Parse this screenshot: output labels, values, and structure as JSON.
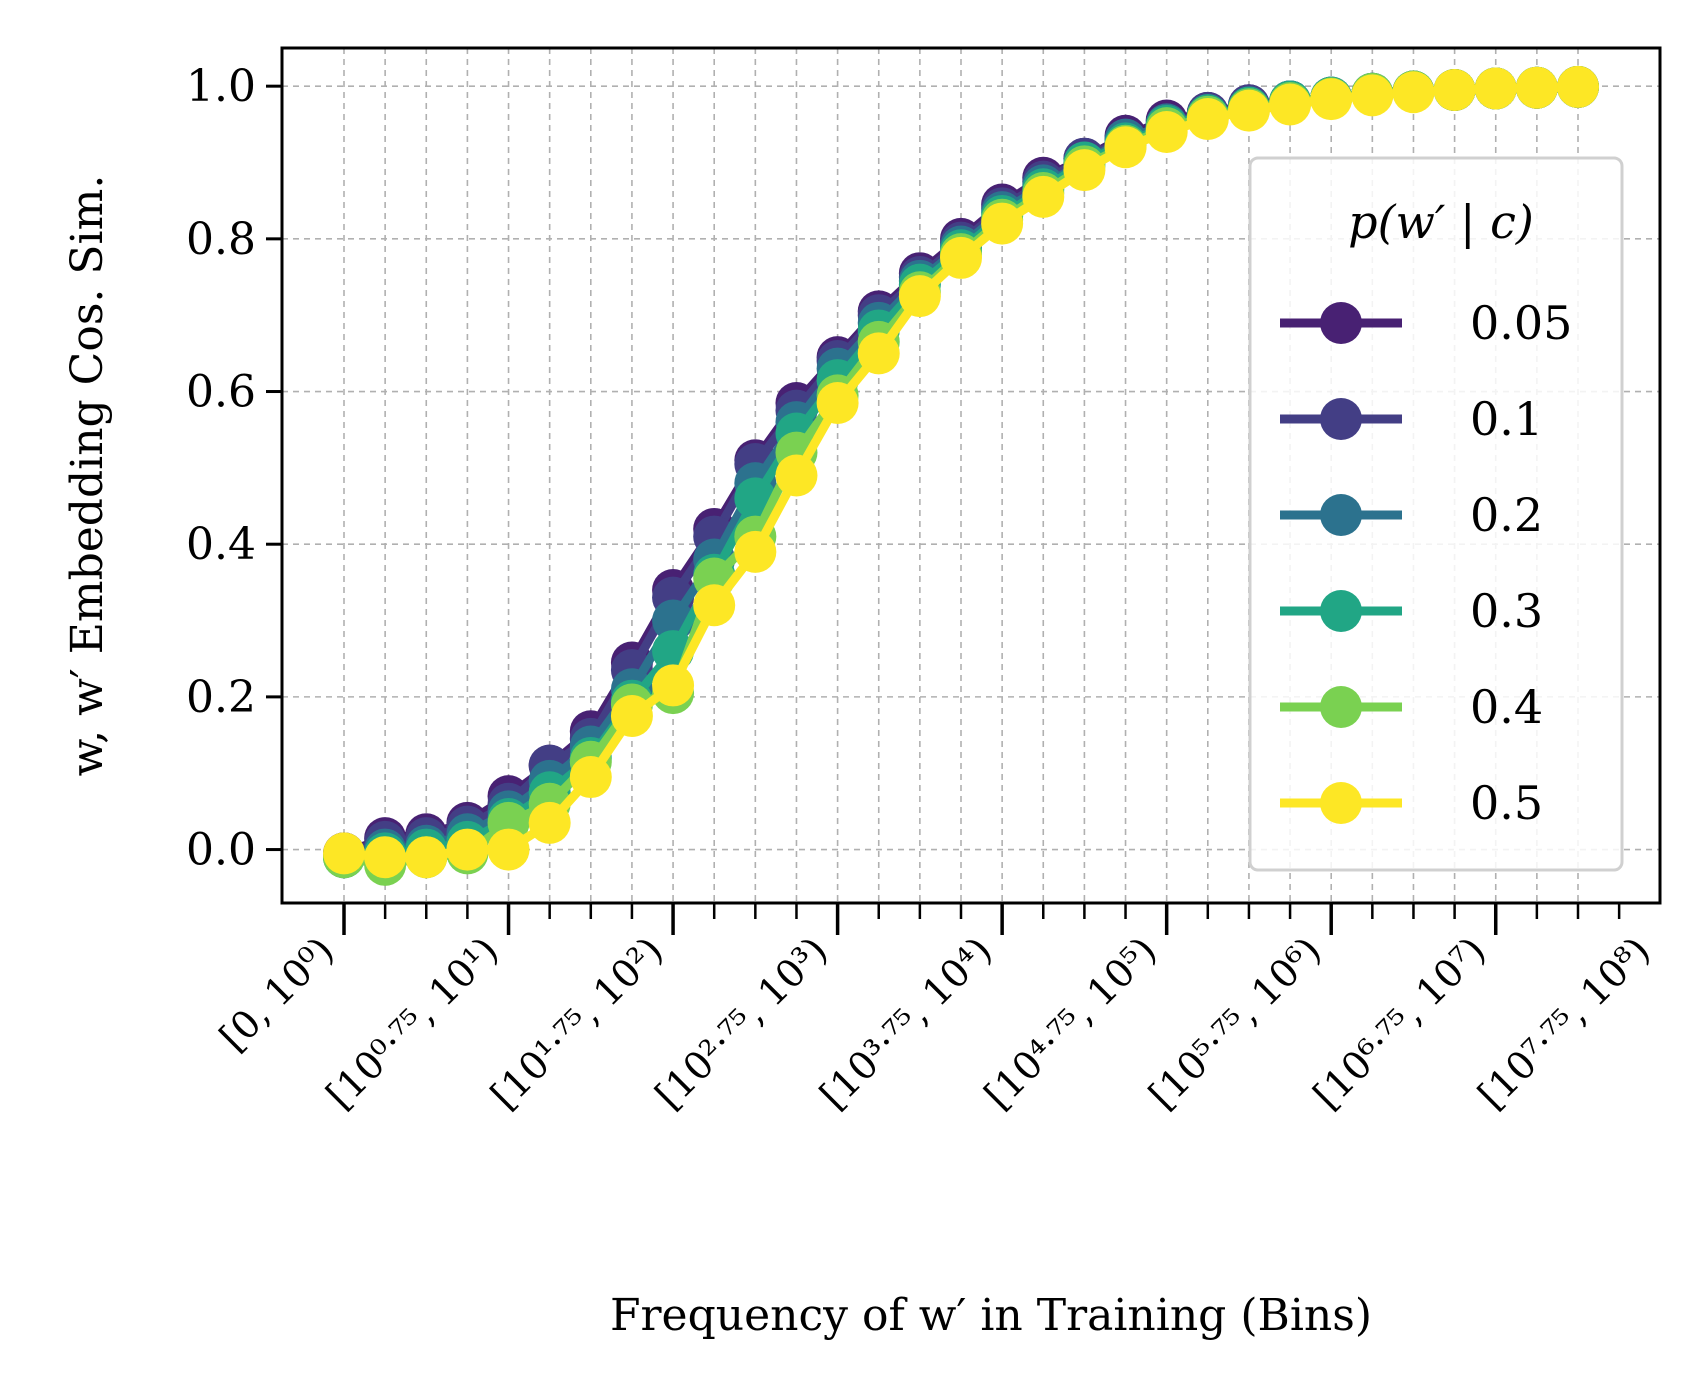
{
  "chart_data": {
    "type": "line",
    "title": "",
    "xlabel": "Frequency of w′ in Training (Bins)",
    "ylabel": "w, w′ Embedding Cos. Sim.",
    "ylim": [
      -0.07,
      1.05
    ],
    "yticks": [
      0.0,
      0.2,
      0.4,
      0.6,
      0.8,
      1.0
    ],
    "ytick_labels": [
      "0.0",
      "0.2",
      "0.4",
      "0.6",
      "0.8",
      "1.0"
    ],
    "x_bins": 31,
    "xtick_labels": [
      "[0, 10⁰)",
      "[10⁰·⁷⁵, 10¹)",
      "[10¹·⁷⁵, 10²)",
      "[10²·⁷⁵, 10³)",
      "[10³·⁷⁵, 10⁴)",
      "[10⁴·⁷⁵, 10⁵)",
      "[10⁵·⁷⁵, 10⁶)",
      "[10⁶·⁷⁵, 10⁷)",
      "[10⁷·⁷⁵, 10⁸)"
    ],
    "grid": true,
    "legend": {
      "title": "p(w′ | c)",
      "placement": "right"
    },
    "series": [
      {
        "name": "0.05",
        "color": "#482173",
        "values": [
          -0.005,
          0.015,
          0.02,
          0.035,
          0.07,
          0.11,
          0.155,
          0.245,
          0.34,
          0.42,
          0.51,
          0.585,
          0.645,
          0.705,
          0.755,
          0.8,
          0.845,
          0.88,
          0.905,
          0.935,
          0.955,
          0.965,
          0.975,
          0.98,
          0.985,
          0.99,
          0.993,
          0.995,
          0.997,
          0.998,
          0.999
        ]
      },
      {
        "name": "0.1",
        "color": "#433e85",
        "values": [
          -0.005,
          0.01,
          0.015,
          0.03,
          0.06,
          0.11,
          0.145,
          0.235,
          0.33,
          0.41,
          0.505,
          0.575,
          0.64,
          0.7,
          0.75,
          0.795,
          0.84,
          0.875,
          0.905,
          0.93,
          0.95,
          0.965,
          0.975,
          0.98,
          0.985,
          0.99,
          0.993,
          0.995,
          0.997,
          0.998,
          0.999
        ]
      },
      {
        "name": "0.2",
        "color": "#2c728e",
        "values": [
          -0.01,
          0.0,
          0.005,
          0.02,
          0.05,
          0.09,
          0.135,
          0.21,
          0.3,
          0.38,
          0.48,
          0.56,
          0.63,
          0.69,
          0.745,
          0.79,
          0.835,
          0.87,
          0.9,
          0.93,
          0.95,
          0.962,
          0.972,
          0.98,
          0.985,
          0.99,
          0.993,
          0.995,
          0.997,
          0.998,
          0.999
        ]
      },
      {
        "name": "0.3",
        "color": "#21a685",
        "values": [
          -0.01,
          -0.005,
          0.0,
          0.01,
          0.04,
          0.075,
          0.12,
          0.195,
          0.26,
          0.36,
          0.46,
          0.545,
          0.615,
          0.68,
          0.74,
          0.785,
          0.83,
          0.865,
          0.9,
          0.925,
          0.948,
          0.962,
          0.972,
          0.98,
          0.985,
          0.99,
          0.993,
          0.995,
          0.997,
          0.998,
          0.999
        ]
      },
      {
        "name": "0.4",
        "color": "#7ad151",
        "values": [
          -0.01,
          -0.02,
          -0.01,
          -0.005,
          0.035,
          0.06,
          0.115,
          0.19,
          0.205,
          0.355,
          0.41,
          0.52,
          0.595,
          0.665,
          0.73,
          0.78,
          0.825,
          0.86,
          0.895,
          0.922,
          0.945,
          0.96,
          0.97,
          0.978,
          0.984,
          0.99,
          0.993,
          0.995,
          0.997,
          0.998,
          0.999
        ]
      },
      {
        "name": "0.5",
        "color": "#fde725",
        "values": [
          -0.005,
          -0.01,
          -0.01,
          0.0,
          0.0,
          0.035,
          0.095,
          0.175,
          0.215,
          0.32,
          0.39,
          0.49,
          0.585,
          0.65,
          0.725,
          0.775,
          0.82,
          0.855,
          0.89,
          0.92,
          0.94,
          0.957,
          0.968,
          0.976,
          0.983,
          0.988,
          0.992,
          0.995,
          0.997,
          0.998,
          0.999
        ]
      }
    ]
  }
}
